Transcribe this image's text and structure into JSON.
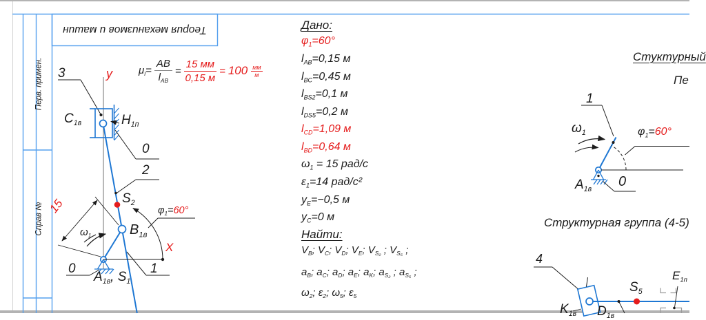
{
  "page": {
    "colors": {
      "mech_blue": "#1e77d3",
      "frame_blue": "#55a0ee",
      "accent_red": "#e51c1c",
      "guide_gray": "#9a9a9a"
    }
  },
  "sidebar": {
    "top_label": "Перв. примен.",
    "bottom_label": "Справ №"
  },
  "title_block": {
    "title": "Теория механизмов и машин"
  },
  "formula": {
    "mu": "μ",
    "mu_sub": "l",
    "eq1": "=",
    "f1_num": "AB",
    "f1_den_main": "l",
    "f1_den_sub": "AB",
    "eq2": "=",
    "f2_num": "15 мм",
    "f2_den": "0,15 м",
    "eq3": "=",
    "result": "100",
    "r_num": "мм",
    "r_den": "м"
  },
  "given": {
    "heading": "Дано:",
    "items": [
      {
        "parts": [
          {
            "t": "φ",
            "c": "red"
          },
          {
            "t": "1",
            "c": "sub red"
          },
          {
            "t": "=60°",
            "c": "red"
          }
        ]
      },
      {
        "parts": [
          {
            "t": "l"
          },
          {
            "t": "AB",
            "c": "sub"
          },
          {
            "t": "=0,15 м"
          }
        ]
      },
      {
        "parts": [
          {
            "t": "l"
          },
          {
            "t": "BC",
            "c": "sub"
          },
          {
            "t": "=0,45 м"
          }
        ]
      },
      {
        "parts": [
          {
            "t": "l"
          },
          {
            "t": "BS2",
            "c": "sub"
          },
          {
            "t": "=0,1 м"
          }
        ]
      },
      {
        "parts": [
          {
            "t": "l"
          },
          {
            "t": "DS5",
            "c": "sub"
          },
          {
            "t": "=0,2 м"
          }
        ]
      },
      {
        "parts": [
          {
            "t": "l",
            "c": "red"
          },
          {
            "t": "CD",
            "c": "sub red"
          },
          {
            "t": "=1,09 м",
            "c": "red"
          }
        ]
      },
      {
        "parts": [
          {
            "t": "l",
            "c": "red"
          },
          {
            "t": "BD",
            "c": "sub red"
          },
          {
            "t": "=0,64 м",
            "c": "red"
          }
        ]
      },
      {
        "parts": [
          {
            "t": "ω"
          },
          {
            "t": "1",
            "c": "sub"
          },
          {
            "t": " = 15 рад/с"
          }
        ]
      },
      {
        "parts": [
          {
            "t": "ε"
          },
          {
            "t": "1",
            "c": "sub"
          },
          {
            "t": "=14 рад/с²"
          }
        ]
      },
      {
        "parts": [
          {
            "t": "y"
          },
          {
            "t": "E",
            "c": "sub"
          },
          {
            "t": "=−0,5 м"
          }
        ]
      },
      {
        "parts": [
          {
            "t": "y"
          },
          {
            "t": "C",
            "c": "sub"
          },
          {
            "t": "=0 м"
          }
        ]
      }
    ]
  },
  "find": {
    "heading": "Найти:",
    "lines": [
      {
        "parts": [
          {
            "t": "V"
          },
          {
            "t": "B",
            "c": "sub"
          },
          {
            "t": "; "
          },
          {
            "t": "V"
          },
          {
            "t": "C",
            "c": "sub"
          },
          {
            "t": "; "
          },
          {
            "t": "V"
          },
          {
            "t": "D",
            "c": "sub"
          },
          {
            "t": "; "
          },
          {
            "t": "V"
          },
          {
            "t": "E",
            "c": "sub"
          },
          {
            "t": "; "
          },
          {
            "t": "V"
          },
          {
            "t": "S₂",
            "c": "sub"
          },
          {
            "t": " ; "
          },
          {
            "t": "V"
          },
          {
            "t": "S₅",
            "c": "sub"
          },
          {
            "t": " ;"
          }
        ]
      },
      {
        "parts": [
          {
            "t": "a"
          },
          {
            "t": "B",
            "c": "sub"
          },
          {
            "t": "; "
          },
          {
            "t": "a"
          },
          {
            "t": "C",
            "c": "sub"
          },
          {
            "t": "; "
          },
          {
            "t": "a"
          },
          {
            "t": "D",
            "c": "sub"
          },
          {
            "t": "; "
          },
          {
            "t": "a"
          },
          {
            "t": "E",
            "c": "sub"
          },
          {
            "t": "; "
          },
          {
            "t": "a"
          },
          {
            "t": "K",
            "c": "sub"
          },
          {
            "t": "; "
          },
          {
            "t": "a"
          },
          {
            "t": "S₂",
            "c": "sub"
          },
          {
            "t": " ; "
          },
          {
            "t": "a"
          },
          {
            "t": "S₅",
            "c": "sub"
          },
          {
            "t": " ;"
          }
        ]
      },
      {
        "parts": [
          {
            "t": "ω"
          },
          {
            "t": "2",
            "c": "sub"
          },
          {
            "t": ";  "
          },
          {
            "t": "ε"
          },
          {
            "t": "2",
            "c": "sub"
          },
          {
            "t": ";  "
          },
          {
            "t": "ω"
          },
          {
            "t": "5",
            "c": "sub"
          },
          {
            "t": ";  "
          },
          {
            "t": "ε"
          },
          {
            "t": "5",
            "c": "sub"
          }
        ]
      }
    ]
  },
  "left_diagram": {
    "labels": {
      "link3": "3",
      "axis_y": "y",
      "axis_x": "X",
      "pos0_top": "0",
      "pos2": "2",
      "pos0_bottom": "0",
      "pos1": "1",
      "dim": "15",
      "c1v": {
        "parts": [
          {
            "t": "C"
          },
          {
            "t": "1в",
            "c": "sub"
          }
        ]
      },
      "h1p": {
        "parts": [
          {
            "t": "H"
          },
          {
            "t": "1п",
            "c": "sub"
          }
        ]
      },
      "s2": {
        "parts": [
          {
            "t": "S"
          },
          {
            "t": "2",
            "c": "sub"
          }
        ]
      },
      "b1v": {
        "parts": [
          {
            "t": "B"
          },
          {
            "t": "1в",
            "c": "sub"
          }
        ]
      },
      "a1v_s1": {
        "parts": [
          {
            "t": "A"
          },
          {
            "t": "1в",
            "c": "sub"
          },
          {
            "t": ", S"
          },
          {
            "t": "1",
            "c": "sub"
          }
        ]
      },
      "omega1": {
        "parts": [
          {
            "t": "ω"
          },
          {
            "t": "1",
            "c": "sub"
          }
        ]
      },
      "phi": {
        "parts": [
          {
            "t": "φ"
          },
          {
            "t": "1",
            "c": "sub"
          },
          {
            "t": "="
          },
          {
            "t": "60°",
            "c": "red"
          }
        ]
      }
    }
  },
  "right_diagram": {
    "heading1": "Стуктурный",
    "heading2": "Пе",
    "pos1": "1",
    "pos0": "0",
    "omega1": {
      "parts": [
        {
          "t": "ω"
        },
        {
          "t": "1",
          "c": "sub"
        }
      ]
    },
    "phi": {
      "parts": [
        {
          "t": "φ"
        },
        {
          "t": "1",
          "c": "sub"
        },
        {
          "t": "="
        },
        {
          "t": "60°",
          "c": "red"
        }
      ]
    },
    "a1v": {
      "parts": [
        {
          "t": "A"
        },
        {
          "t": "1в",
          "c": "sub"
        }
      ]
    }
  },
  "group_diagram": {
    "heading": "Структурная группа (4-5)",
    "pos4": "4",
    "s5": {
      "parts": [
        {
          "t": "S"
        },
        {
          "t": "5",
          "c": "sub"
        }
      ]
    },
    "e1p": {
      "parts": [
        {
          "t": "E"
        },
        {
          "t": "1п",
          "c": "sub"
        }
      ]
    },
    "k1v": {
      "parts": [
        {
          "t": "K"
        },
        {
          "t": "1в",
          "c": "sub"
        }
      ]
    },
    "d1v": {
      "parts": [
        {
          "t": "D"
        },
        {
          "t": "1в",
          "c": "sub"
        }
      ]
    }
  }
}
